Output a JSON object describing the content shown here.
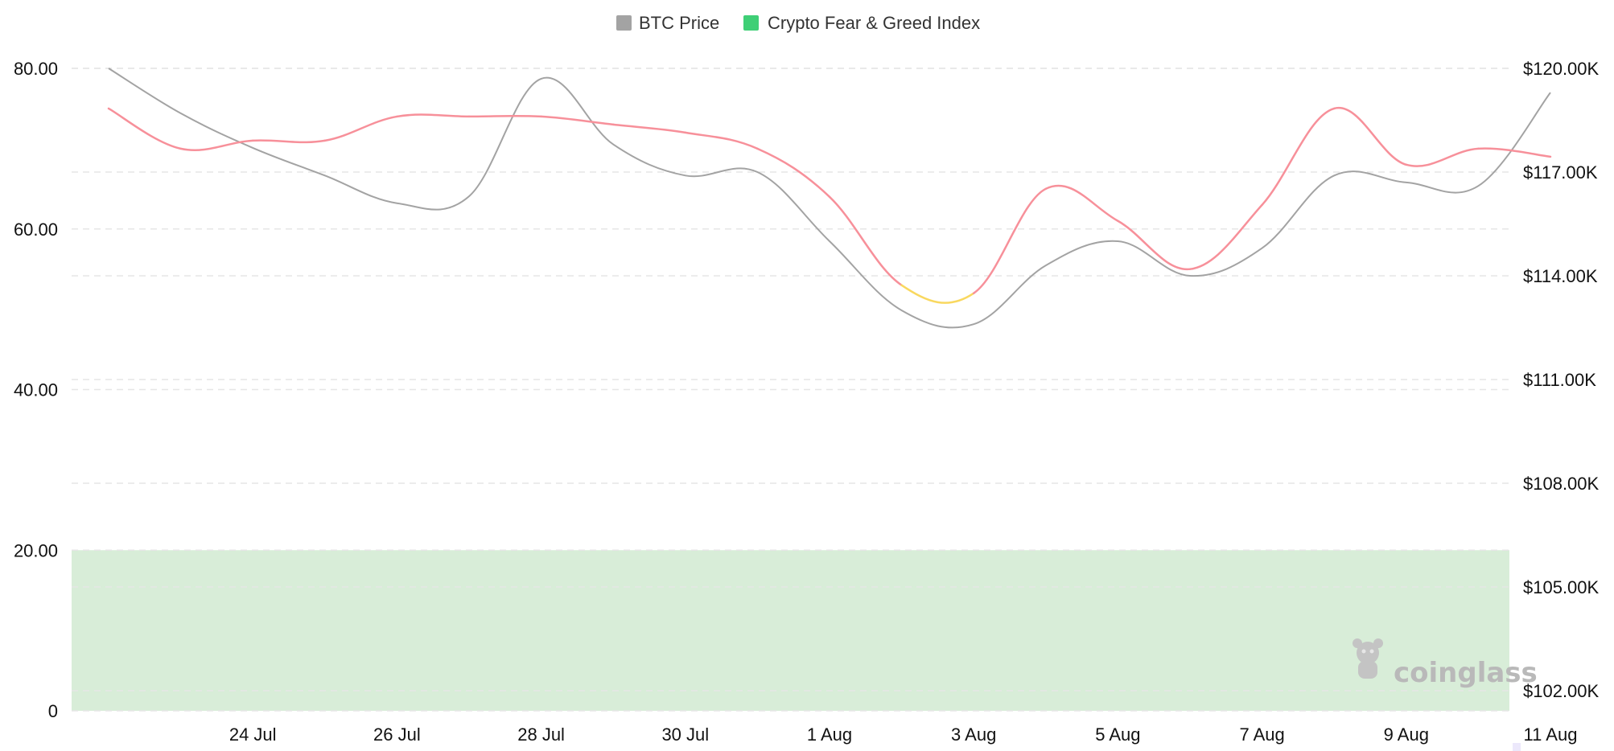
{
  "legend": {
    "btc_label": "BTC Price",
    "fgi_label": "Crypto Fear & Greed Index"
  },
  "colors": {
    "btc_line": "#a3a3a3",
    "btc_legend": "#a3a3a3",
    "fgi_legend": "#3fcf76",
    "greed": "#f7909a",
    "neutral": "#f9d85f",
    "fear_zone": "#d8edd8",
    "watermark": "#c4c4c4"
  },
  "watermark": "coinglass",
  "chart_data": {
    "type": "line",
    "x_labels": [
      "24 Jul",
      "26 Jul",
      "28 Jul",
      "30 Jul",
      "1 Aug",
      "3 Aug",
      "5 Aug",
      "7 Aug",
      "9 Aug",
      "11 Aug"
    ],
    "x": [
      "22 Jul",
      "23 Jul",
      "24 Jul",
      "25 Jul",
      "26 Jul",
      "27 Jul",
      "28 Jul",
      "29 Jul",
      "30 Jul",
      "31 Jul",
      "1 Aug",
      "2 Aug",
      "3 Aug",
      "4 Aug",
      "5 Aug",
      "6 Aug",
      "7 Aug",
      "8 Aug",
      "9 Aug",
      "10 Aug",
      "11 Aug"
    ],
    "left_axis": {
      "ticks": [
        "0",
        "20.00",
        "40.00",
        "60.00",
        "80.00"
      ],
      "tick_values": [
        0,
        20,
        40,
        60,
        80
      ],
      "range": [
        0,
        80
      ]
    },
    "right_axis": {
      "ticks": [
        "$102.00K",
        "$105.00K",
        "$108.00K",
        "$111.00K",
        "$114.00K",
        "$117.00K",
        "$120.00K"
      ],
      "tick_values": [
        102000,
        105000,
        108000,
        111000,
        114000,
        117000,
        120000
      ],
      "range": [
        101600,
        120000
      ]
    },
    "series": [
      {
        "name": "BTC Price",
        "axis": "right",
        "values": [
          120000,
          118700,
          117700,
          116900,
          116100,
          116300,
          119700,
          117800,
          116900,
          117000,
          115000,
          113000,
          112600,
          114300,
          115000,
          114000,
          114800,
          116900,
          116700,
          116600,
          119300
        ]
      },
      {
        "name": "Crypto Fear & Greed Index",
        "axis": "left",
        "values": [
          75,
          70,
          71,
          71,
          74,
          74,
          74,
          73,
          72,
          70,
          64,
          53,
          52,
          65,
          61,
          55,
          63,
          75,
          68,
          70,
          69
        ]
      }
    ],
    "fear_zone": [
      0,
      20
    ],
    "legend_position": "top-center",
    "grid": true
  }
}
